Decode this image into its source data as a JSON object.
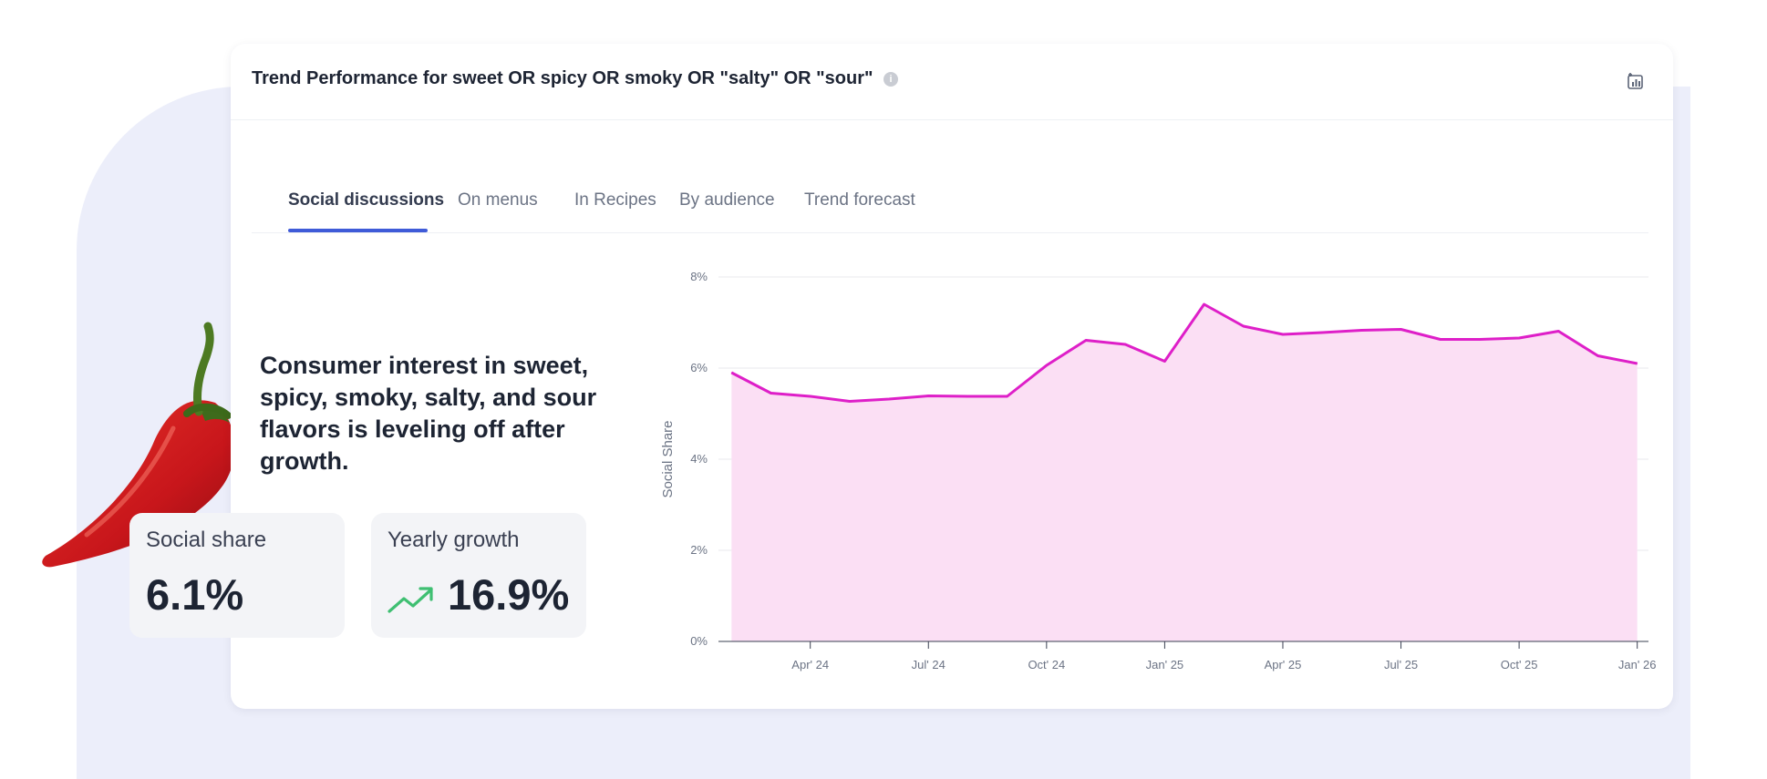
{
  "card": {
    "title": "Trend Performance for sweet OR spicy OR smoky OR \"salty\" OR \"sour\"",
    "info_glyph": "i",
    "export_icon": "chart-export-icon"
  },
  "tabs": [
    {
      "label": "Social discussions",
      "active": true
    },
    {
      "label": "On menus",
      "active": false
    },
    {
      "label": "In Recipes",
      "active": false
    },
    {
      "label": "By audience",
      "active": false
    },
    {
      "label": "Trend forecast",
      "active": false
    }
  ],
  "headline": "Consumer interest in sweet, spicy, smoky, salty, and sour flavors is leveling off after growth.",
  "stats": {
    "social_share": {
      "label": "Social share",
      "value": "6.1%"
    },
    "yearly_growth": {
      "label": "Yearly growth",
      "value": "16.9%",
      "icon": "trend-up-icon"
    }
  },
  "colors": {
    "accent_tab": "#3f5bd8",
    "line": "#de1fc8",
    "area": "#fbdff4",
    "growth_icon": "#3fbf72"
  },
  "chart_data": {
    "type": "area",
    "ylabel": "Social Share",
    "xlabel": "",
    "ylim": [
      0,
      8
    ],
    "yticks": [
      "0%",
      "2%",
      "4%",
      "6%",
      "8%"
    ],
    "xticks": [
      "Apr' 24",
      "Jul' 24",
      "Oct' 24",
      "Jan' 25",
      "Apr' 25",
      "Jul' 25",
      "Oct' 25",
      "Jan' 26"
    ],
    "x": [
      "2024-02",
      "2024-03",
      "2024-04",
      "2024-05",
      "2024-06",
      "2024-07",
      "2024-08",
      "2024-09",
      "2024-10",
      "2024-11",
      "2024-12",
      "2025-01",
      "2025-02",
      "2025-03",
      "2025-04",
      "2025-05",
      "2025-06",
      "2025-07",
      "2025-08",
      "2025-09",
      "2025-10",
      "2025-11",
      "2025-12",
      "2026-01"
    ],
    "values": [
      5.9,
      5.45,
      5.38,
      5.27,
      5.32,
      5.39,
      5.38,
      5.38,
      6.06,
      6.61,
      6.52,
      6.15,
      7.4,
      6.92,
      6.74,
      6.78,
      6.83,
      6.85,
      6.63,
      6.63,
      6.66,
      6.81,
      6.27,
      6.1
    ],
    "grid": true
  }
}
